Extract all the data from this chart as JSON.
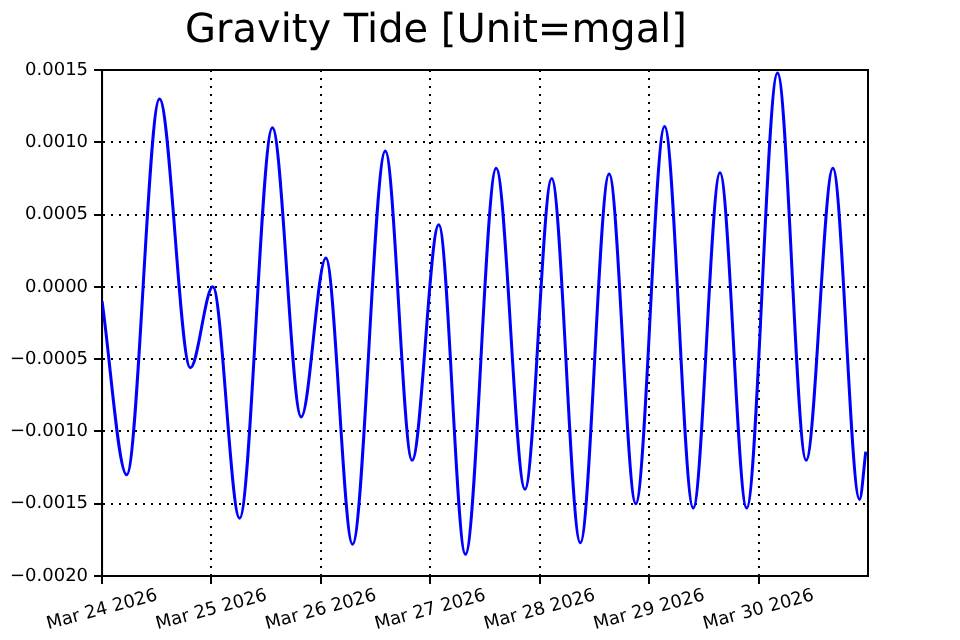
{
  "chart_data": {
    "type": "line",
    "title": "Gravity Tide [Unit=mgal]",
    "x": [
      "2026-03-24T00:00",
      "2026-03-24T05:24",
      "2026-03-24T12:36",
      "2026-03-24T19:22",
      "2026-03-25T00:18",
      "2026-03-25T06:10",
      "2026-03-25T13:22",
      "2026-03-25T19:41",
      "2026-03-26T01:05",
      "2026-03-26T06:56",
      "2026-03-26T14:08",
      "2026-03-26T20:00",
      "2026-03-27T01:51",
      "2026-03-27T07:42",
      "2026-03-27T14:27",
      "2026-03-27T20:46",
      "2026-03-28T02:37",
      "2026-03-28T08:54",
      "2026-03-28T15:13",
      "2026-03-28T21:04",
      "2026-03-29T03:23",
      "2026-03-29T09:40",
      "2026-03-29T15:32",
      "2026-03-29T21:23",
      "2026-03-30T04:09",
      "2026-03-30T10:26",
      "2026-03-30T16:18",
      "2026-03-30T22:09",
      "2026-03-30T23:31"
    ],
    "series": [
      {
        "color": "#0000ff",
        "values": [
          -0.0001,
          -0.0013,
          0.0013,
          -0.00056,
          0,
          -0.0016,
          0.0011,
          -0.0009,
          0.0002,
          -0.00178,
          0.00094,
          -0.0012,
          0.00043,
          -0.00185,
          0.00082,
          -0.0014,
          0.00075,
          -0.00177,
          0.00078,
          -0.0015,
          0.00111,
          -0.00153,
          0.00079,
          -0.00153,
          0.00148,
          -0.0012,
          0.00082,
          -0.00147,
          -0.00114
        ]
      }
    ],
    "xlim": [
      "2026-03-24T00:00",
      "2026-03-31T00:00"
    ],
    "xticks": [
      {
        "value": "2026-03-24T00:00",
        "label": "Mar 24 2026"
      },
      {
        "value": "2026-03-25T00:00",
        "label": "Mar 25 2026"
      },
      {
        "value": "2026-03-26T00:00",
        "label": "Mar 26 2026"
      },
      {
        "value": "2026-03-27T00:00",
        "label": "Mar 27 2026"
      },
      {
        "value": "2026-03-28T00:00",
        "label": "Mar 28 2026"
      },
      {
        "value": "2026-03-29T00:00",
        "label": "Mar 29 2026"
      },
      {
        "value": "2026-03-30T00:00",
        "label": "Mar 30 2026"
      }
    ],
    "ylim": [
      -0.002,
      0.0015
    ],
    "yticks": [
      {
        "value": -0.002,
        "label": "−0.0020"
      },
      {
        "value": -0.0015,
        "label": "−0.0015"
      },
      {
        "value": -0.001,
        "label": "−0.0010"
      },
      {
        "value": -0.0005,
        "label": "−0.0005"
      },
      {
        "value": 0,
        "label": "0.0000"
      },
      {
        "value": 0.0005,
        "label": "0.0005"
      },
      {
        "value": 0.001,
        "label": "0.0010"
      },
      {
        "value": 0.0015,
        "label": "0.0015"
      }
    ],
    "grid": true,
    "line_style": "solid",
    "marker": "none",
    "legend": false
  }
}
